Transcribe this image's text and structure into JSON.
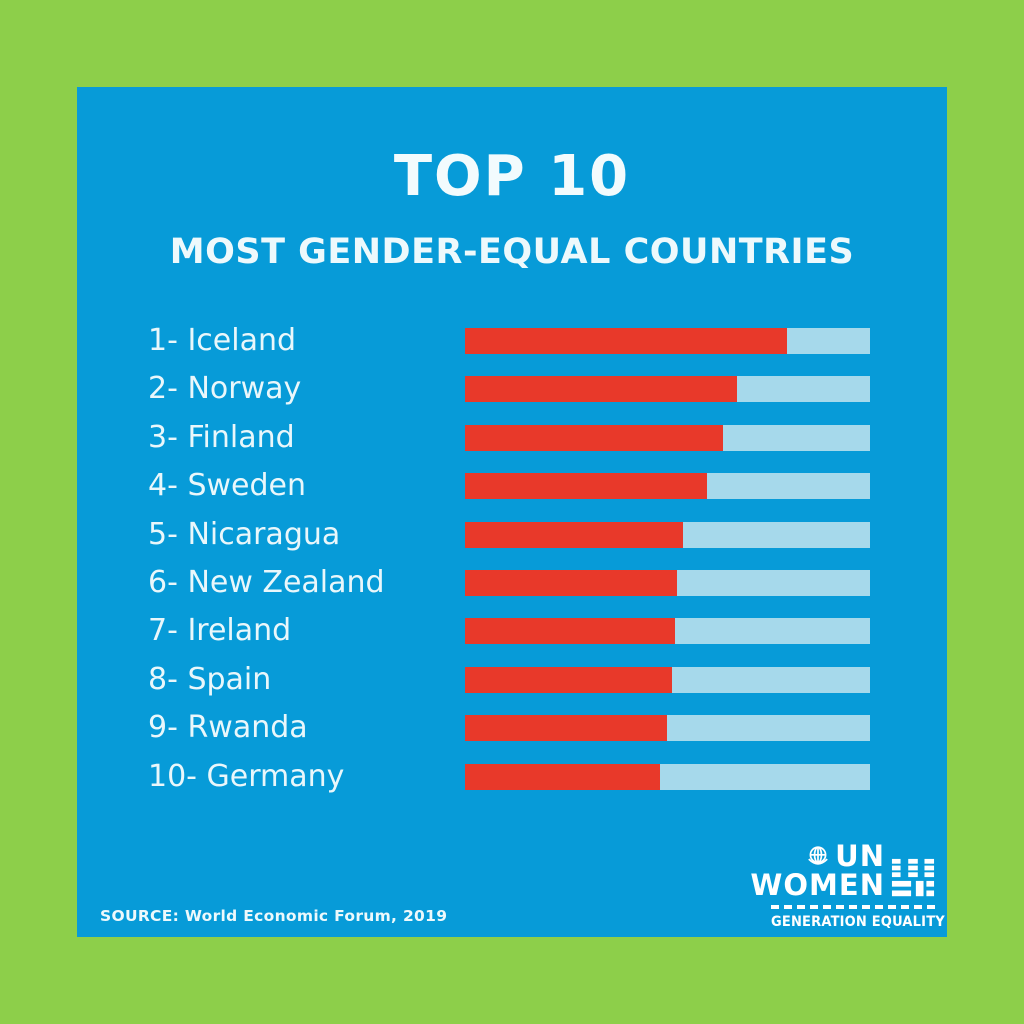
{
  "title": "TOP 10",
  "subtitle": "MOST GENDER-EQUAL COUNTRIES",
  "source": "SOURCE: World Economic Forum, 2019",
  "colors": {
    "border_green": "#8DCF4A",
    "panel_blue": "#079BD8",
    "bar_red": "#E8392A",
    "track_light_blue": "#A6D9EB",
    "text_white": "#EDF9FC"
  },
  "logo": {
    "un": "UN",
    "women": "WOMEN",
    "tagline": "GENERATION EQUALITY",
    "icons": [
      "un-emblem-icon",
      "un-women-mark-icon"
    ]
  },
  "chart_data": {
    "type": "bar",
    "orientation": "horizontal",
    "title": "TOP 10",
    "subtitle": "MOST GENDER-EQUAL COUNTRIES",
    "source": "SOURCE: World Economic Forum, 2019",
    "categories": [
      "Iceland",
      "Norway",
      "Finland",
      "Sweden",
      "Nicaragua",
      "New Zealand",
      "Ireland",
      "Spain",
      "Rwanda",
      "Germany"
    ],
    "ranks": [
      1,
      2,
      3,
      4,
      5,
      6,
      7,
      8,
      9,
      10
    ],
    "values": [
      79.5,
      67.2,
      63.7,
      59.8,
      53.8,
      52.3,
      51.9,
      51.1,
      49.9,
      48.1
    ],
    "value_unit": "percent of track filled (estimated from pixels; no numeric labels shown)",
    "xlim": [
      0,
      100
    ],
    "grid": false,
    "legend": false,
    "bar_color": "#E8392A",
    "track_color": "#A6D9EB",
    "rows": [
      {
        "label": "1- Iceland",
        "fill_pct": 79.5
      },
      {
        "label": "2- Norway",
        "fill_pct": 67.2
      },
      {
        "label": "3- Finland",
        "fill_pct": 63.7
      },
      {
        "label": "4- Sweden",
        "fill_pct": 59.8
      },
      {
        "label": "5- Nicaragua",
        "fill_pct": 53.8
      },
      {
        "label": "6- New Zealand",
        "fill_pct": 52.3
      },
      {
        "label": "7- Ireland",
        "fill_pct": 51.9
      },
      {
        "label": "8- Spain",
        "fill_pct": 51.1
      },
      {
        "label": "9- Rwanda",
        "fill_pct": 49.9
      },
      {
        "label": "10- Germany",
        "fill_pct": 48.1
      }
    ]
  }
}
